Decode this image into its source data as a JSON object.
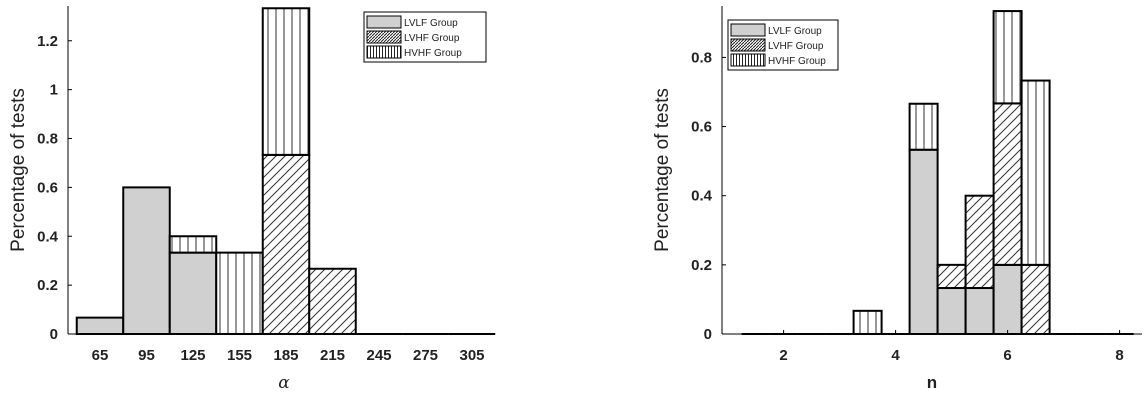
{
  "colors": {
    "lvlf_fill": "#d0d0d0",
    "edge": "#000000",
    "hatch": "#333333"
  },
  "chart_data": [
    {
      "type": "bar",
      "stacked": true,
      "title": "",
      "xlabel": "α",
      "ylabel": "Percentage of tests",
      "categories": [
        "65",
        "95",
        "125",
        "155",
        "185",
        "215",
        "245",
        "275",
        "305"
      ],
      "ylim": [
        0,
        1.33
      ],
      "yticks": [
        0,
        0.2,
        0.4,
        0.6,
        0.8,
        1,
        1.2
      ],
      "ytick_labels": [
        "0",
        "0.2",
        "0.4",
        "0.6",
        "0.8",
        "1",
        "1.2"
      ],
      "legend": "top-right",
      "series": [
        {
          "name": "LVLF Group",
          "pattern": "solid",
          "values": [
            0.067,
            0.6,
            0.333,
            0,
            0,
            0,
            0,
            0,
            0
          ]
        },
        {
          "name": "LVHF Group",
          "pattern": "diagonal",
          "values": [
            0,
            0,
            0,
            0,
            0.733,
            0.267,
            0,
            0,
            0
          ]
        },
        {
          "name": "HVHF Group",
          "pattern": "vertical",
          "values": [
            0,
            0,
            0.067,
            0.333,
            0.6,
            0,
            0,
            0,
            0
          ]
        }
      ]
    },
    {
      "type": "bar",
      "stacked": true,
      "title": "",
      "xlabel": "n",
      "ylabel": "Percentage of tests",
      "x": [
        1.5,
        2,
        2.5,
        3,
        3.5,
        4,
        4.5,
        5,
        5.5,
        6,
        6.5,
        7,
        7.5,
        8
      ],
      "xticks": [
        2,
        4,
        6,
        8
      ],
      "xtick_labels": [
        "2",
        "4",
        "6",
        "8"
      ],
      "xlim": [
        0.9,
        8.4
      ],
      "ylim": [
        0,
        0.94
      ],
      "yticks": [
        0,
        0.2,
        0.4,
        0.6,
        0.8
      ],
      "ytick_labels": [
        "0",
        "0.2",
        "0.4",
        "0.6",
        "0.8"
      ],
      "legend": "top-left",
      "series": [
        {
          "name": "LVLF Group",
          "pattern": "solid",
          "values": [
            0,
            0,
            0,
            0,
            0,
            0,
            0.533,
            0.133,
            0.133,
            0.2,
            0,
            0,
            0,
            0
          ]
        },
        {
          "name": "LVHF Group",
          "pattern": "diagonal",
          "values": [
            0,
            0,
            0,
            0,
            0,
            0,
            0,
            0.067,
            0.267,
            0.467,
            0.2,
            0,
            0,
            0
          ]
        },
        {
          "name": "HVHF Group",
          "pattern": "vertical",
          "values": [
            0,
            0,
            0,
            0,
            0.067,
            0,
            0.133,
            0,
            0,
            0.267,
            0.533,
            0,
            0,
            0
          ]
        }
      ]
    }
  ]
}
